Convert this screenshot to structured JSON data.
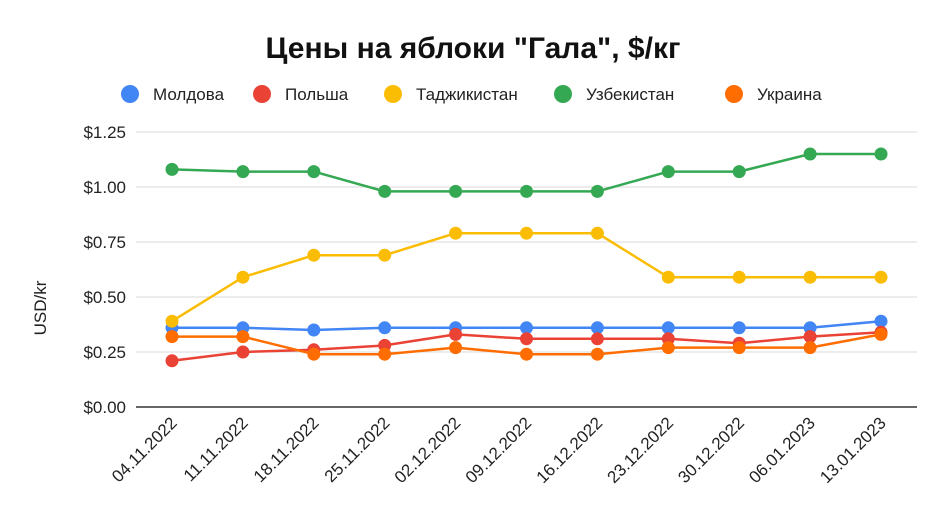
{
  "chart_data": {
    "type": "line",
    "title": "Цены на яблоки \"Гала\", $/кг",
    "xlabel": "",
    "ylabel": "USD/kr",
    "ylim": [
      0,
      1.25
    ],
    "yticks": [
      "$0.00",
      "$0.25",
      "$0.50",
      "$0.75",
      "$1.00",
      "$1.25"
    ],
    "ytick_values": [
      0,
      0.25,
      0.5,
      0.75,
      1.0,
      1.25
    ],
    "grid": true,
    "legend_position": "top",
    "categories": [
      "04.11.2022",
      "11.11.2022",
      "18.11.2022",
      "25.11.2022",
      "02.12.2022",
      "09.12.2022",
      "16.12.2022",
      "23.12.2022",
      "30.12.2022",
      "06.01.2023",
      "13.01.2023"
    ],
    "series": [
      {
        "name": "Молдова",
        "color": "#4285f4",
        "values": [
          0.36,
          0.36,
          0.35,
          0.36,
          0.36,
          0.36,
          0.36,
          0.36,
          0.36,
          0.36,
          0.39
        ]
      },
      {
        "name": "Польша",
        "color": "#ea4335",
        "values": [
          0.21,
          0.25,
          0.26,
          0.28,
          0.33,
          0.31,
          0.31,
          0.31,
          0.29,
          0.32,
          0.34
        ]
      },
      {
        "name": "Таджикистан",
        "color": "#fbbc04",
        "values": [
          0.39,
          0.59,
          0.69,
          0.69,
          0.79,
          0.79,
          0.79,
          0.59,
          0.59,
          0.59,
          0.59
        ]
      },
      {
        "name": "Узбекистан",
        "color": "#34a853",
        "values": [
          1.08,
          1.07,
          1.07,
          0.98,
          0.98,
          0.98,
          0.98,
          1.07,
          1.07,
          1.15,
          1.15
        ]
      },
      {
        "name": "Украина",
        "color": "#ff6d01",
        "values": [
          0.32,
          0.32,
          0.24,
          0.24,
          0.27,
          0.24,
          0.24,
          0.27,
          0.27,
          0.27,
          0.33
        ]
      }
    ]
  }
}
